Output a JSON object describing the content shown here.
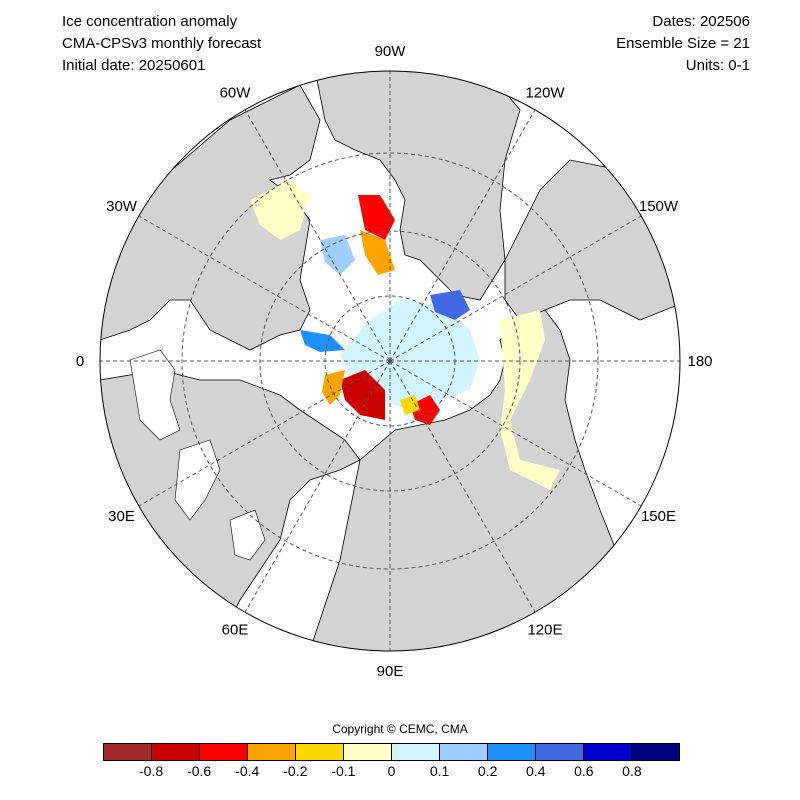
{
  "header": {
    "title": "Ice concentration anomaly",
    "model": "CMA-CPSv3 monthly forecast",
    "initial_date": "Initial date: 20250601",
    "dates": "Dates: 202506",
    "ensemble": "Ensemble Size = 21",
    "units": "Units: 0-1"
  },
  "map": {
    "projection": "north-polar-stereographic",
    "longitude_labels": [
      "90W",
      "120W",
      "150W",
      "180",
      "150E",
      "120E",
      "90E",
      "60E",
      "30E",
      "0",
      "30W",
      "60W"
    ],
    "colors": {
      "land": "#d3d3d3",
      "ocean": "#ffffff",
      "gridline": "#555555",
      "coastline": "#000000"
    }
  },
  "copyright": "Copyright © CEMC, CMA",
  "colorbar": {
    "colors": [
      "#a52a2a",
      "#cd0000",
      "#ff0000",
      "#ffa500",
      "#ffd700",
      "#ffffc8",
      "#d2f5ff",
      "#a0cdff",
      "#1e90ff",
      "#4169e1",
      "#0000cd",
      "#000080"
    ],
    "labels": [
      "-0.8",
      "-0.6",
      "-0.4",
      "-0.2",
      "-0.1",
      "0",
      "0.1",
      "0.2",
      "0.4",
      "0.6",
      "0.8"
    ]
  }
}
